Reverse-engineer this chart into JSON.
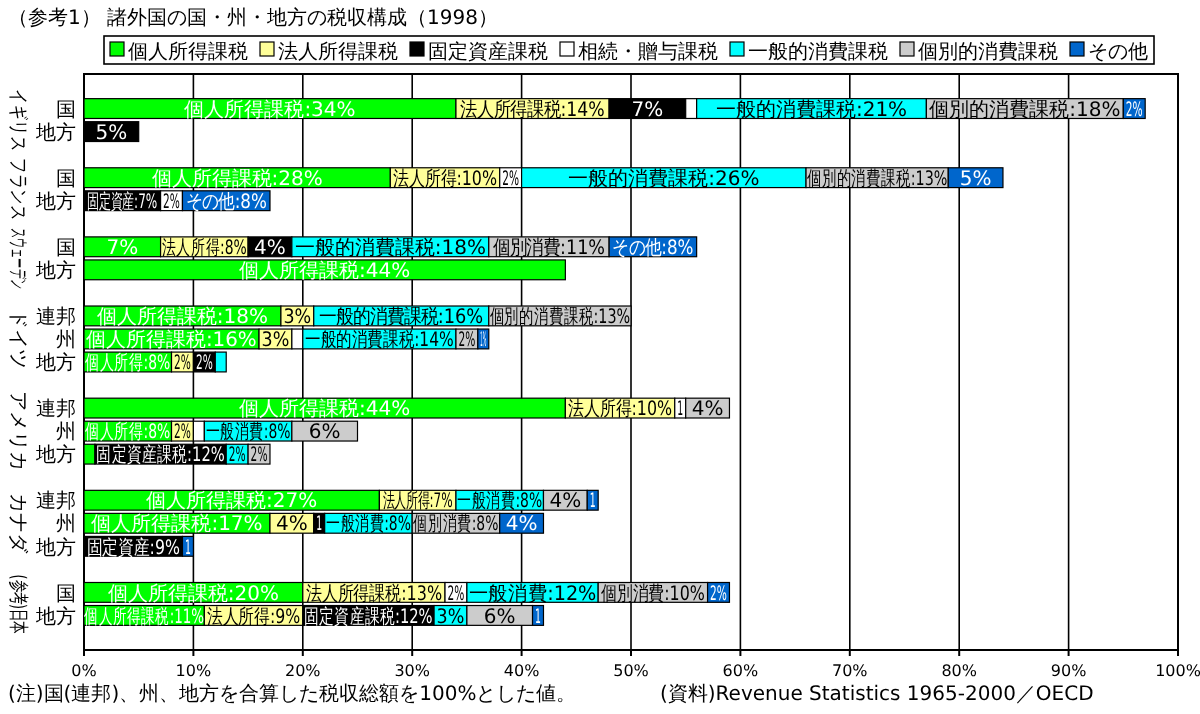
{
  "chart_data": {
    "type": "bar",
    "orientation": "horizontal",
    "stacked": true,
    "title": "（参考1） 諸外国の国・州・地方の税収構成（1998）",
    "categories": [
      null,
      "国",
      "地方",
      null,
      "国",
      "地方",
      null,
      "国",
      "地方",
      null,
      "連邦",
      "州",
      "地方",
      null,
      "連邦",
      "州",
      "地方",
      null,
      "連邦",
      "州",
      "地方",
      null,
      "国",
      "地方",
      null
    ],
    "series": [
      {
        "name": "個人所得課税",
        "color": "#00ff00",
        "values": [
          null,
          34,
          null,
          null,
          28,
          null,
          null,
          7,
          44,
          null,
          18,
          16,
          8,
          null,
          44,
          8,
          1,
          null,
          27,
          17,
          null,
          null,
          20,
          11,
          null
        ],
        "value_labels": [
          null,
          "個人所得課税:34%",
          null,
          null,
          "個人所得課税:28%",
          null,
          null,
          "7%",
          "個人所得課税:44%",
          null,
          "個人所得課税:18%",
          "個人所得課税:16%",
          "個人所得:8%",
          null,
          "個人所得課税:44%",
          "個人所得:8%",
          null,
          null,
          "個人所得課税:27%",
          "個人所得課税:17%",
          null,
          null,
          "個人所得課税:20%",
          "個人所得課税:11%",
          null
        ]
      },
      {
        "name": "法人所得課税",
        "color": "#ffff99",
        "values": [
          null,
          14,
          null,
          null,
          10,
          null,
          null,
          8,
          null,
          null,
          3,
          3,
          2,
          null,
          10,
          2,
          null,
          null,
          7,
          4,
          null,
          null,
          13,
          9,
          null
        ],
        "value_labels": [
          null,
          "法人所得課税:14%",
          null,
          null,
          "法人所得:10%",
          null,
          null,
          "法人所得:8%",
          null,
          null,
          "3%",
          "3%",
          "2%",
          null,
          "法人所得:10%",
          "2%",
          null,
          null,
          "法人所得:7%",
          "4%",
          null,
          null,
          "法人所得課税:13%",
          "法人所得:9%",
          null
        ]
      },
      {
        "name": "固定資産課税",
        "color": "#000000",
        "values": [
          null,
          7,
          5,
          null,
          null,
          7,
          null,
          4,
          null,
          null,
          null,
          null,
          2,
          null,
          null,
          null,
          12,
          null,
          null,
          1,
          9,
          null,
          null,
          12,
          null
        ],
        "value_labels": [
          null,
          "7%",
          "5%",
          null,
          null,
          "固定資産:7%",
          null,
          "4%",
          null,
          null,
          null,
          null,
          "2%",
          null,
          null,
          null,
          "固定資産課税:12%",
          null,
          null,
          "1",
          "固定資産:9%",
          null,
          null,
          "固定資産課税:12%",
          null
        ]
      },
      {
        "name": "相続・贈与課税",
        "color": "#ffffff",
        "values": [
          null,
          1,
          null,
          null,
          2,
          2,
          null,
          null,
          null,
          null,
          null,
          1,
          null,
          null,
          1,
          1,
          null,
          null,
          null,
          null,
          null,
          null,
          2,
          null,
          null
        ],
        "value_labels": [
          null,
          null,
          null,
          null,
          "2%",
          "2%",
          null,
          null,
          null,
          null,
          null,
          null,
          null,
          null,
          "1",
          null,
          null,
          null,
          null,
          null,
          null,
          null,
          "2%",
          null,
          null
        ]
      },
      {
        "name": "一般的消費課税",
        "color": "#00ffff",
        "values": [
          null,
          21,
          null,
          null,
          26,
          null,
          null,
          18,
          null,
          null,
          16,
          14,
          1,
          null,
          null,
          8,
          2,
          null,
          8,
          8,
          null,
          null,
          12,
          3,
          null
        ],
        "value_labels": [
          null,
          "一般的消費課税:21%",
          null,
          null,
          "一般的消費課税:26%",
          null,
          null,
          "一般的消費課税:18%",
          null,
          null,
          "一般的消費課税:16%",
          "一般的消費課税:14%",
          null,
          null,
          null,
          "一般消費:8%",
          "2%",
          null,
          "一般消費:8%",
          "一般消費:8%",
          null,
          null,
          "一般消費:12%",
          "3%",
          null
        ]
      },
      {
        "name": "個別的消費課税",
        "color": "#cccccc",
        "values": [
          null,
          18,
          null,
          null,
          13,
          null,
          null,
          11,
          null,
          null,
          13,
          2,
          null,
          null,
          4,
          6,
          2,
          null,
          4,
          8,
          null,
          null,
          10,
          6,
          null
        ],
        "value_labels": [
          null,
          "個別的消費課税:18%",
          null,
          null,
          "個別的消費課税:13%",
          null,
          null,
          "個別消費:11%",
          null,
          null,
          "個別的消費課税:13%",
          "2%",
          null,
          null,
          "4%",
          "6%",
          "2%",
          null,
          "4%",
          "個別消費:8%",
          null,
          null,
          "個別消費:10%",
          "6%",
          null
        ]
      },
      {
        "name": "その他",
        "color": "#0066cc",
        "values": [
          null,
          2,
          null,
          null,
          5,
          8,
          null,
          8,
          null,
          null,
          null,
          1,
          null,
          null,
          null,
          null,
          null,
          null,
          1,
          4,
          1,
          null,
          2,
          1,
          null
        ],
        "value_labels": [
          null,
          "2%",
          null,
          null,
          "5%",
          "その他:8%",
          null,
          "その他:8%",
          null,
          null,
          null,
          "1%",
          null,
          null,
          null,
          null,
          null,
          null,
          "1",
          "4%",
          "1",
          null,
          "2%",
          "1",
          null
        ]
      }
    ],
    "xlim": [
      0,
      100
    ],
    "xticks": [
      {
        "value": 0,
        "label": "0%"
      },
      {
        "value": 10,
        "label": "10%"
      },
      {
        "value": 20,
        "label": "20%"
      },
      {
        "value": 30,
        "label": "30%"
      },
      {
        "value": 40,
        "label": "40%"
      },
      {
        "value": 50,
        "label": "50%"
      },
      {
        "value": 60,
        "label": "60%"
      },
      {
        "value": 70,
        "label": "70%"
      },
      {
        "value": 80,
        "label": "80%"
      },
      {
        "value": 90,
        "label": "90%"
      },
      {
        "value": 100,
        "label": "100%"
      }
    ],
    "grid": "x",
    "legend": "top",
    "annotations": [
      "イギリス",
      "フランス",
      "スウェーデン",
      "ドイツ",
      "アメリカ",
      "カナダ",
      "(参考)日本",
      "(注)国(連邦)、州、地方を合算した税収総額を100%とした値。",
      "(資料)Revenue Statistics 1965-2000／OECD"
    ]
  }
}
